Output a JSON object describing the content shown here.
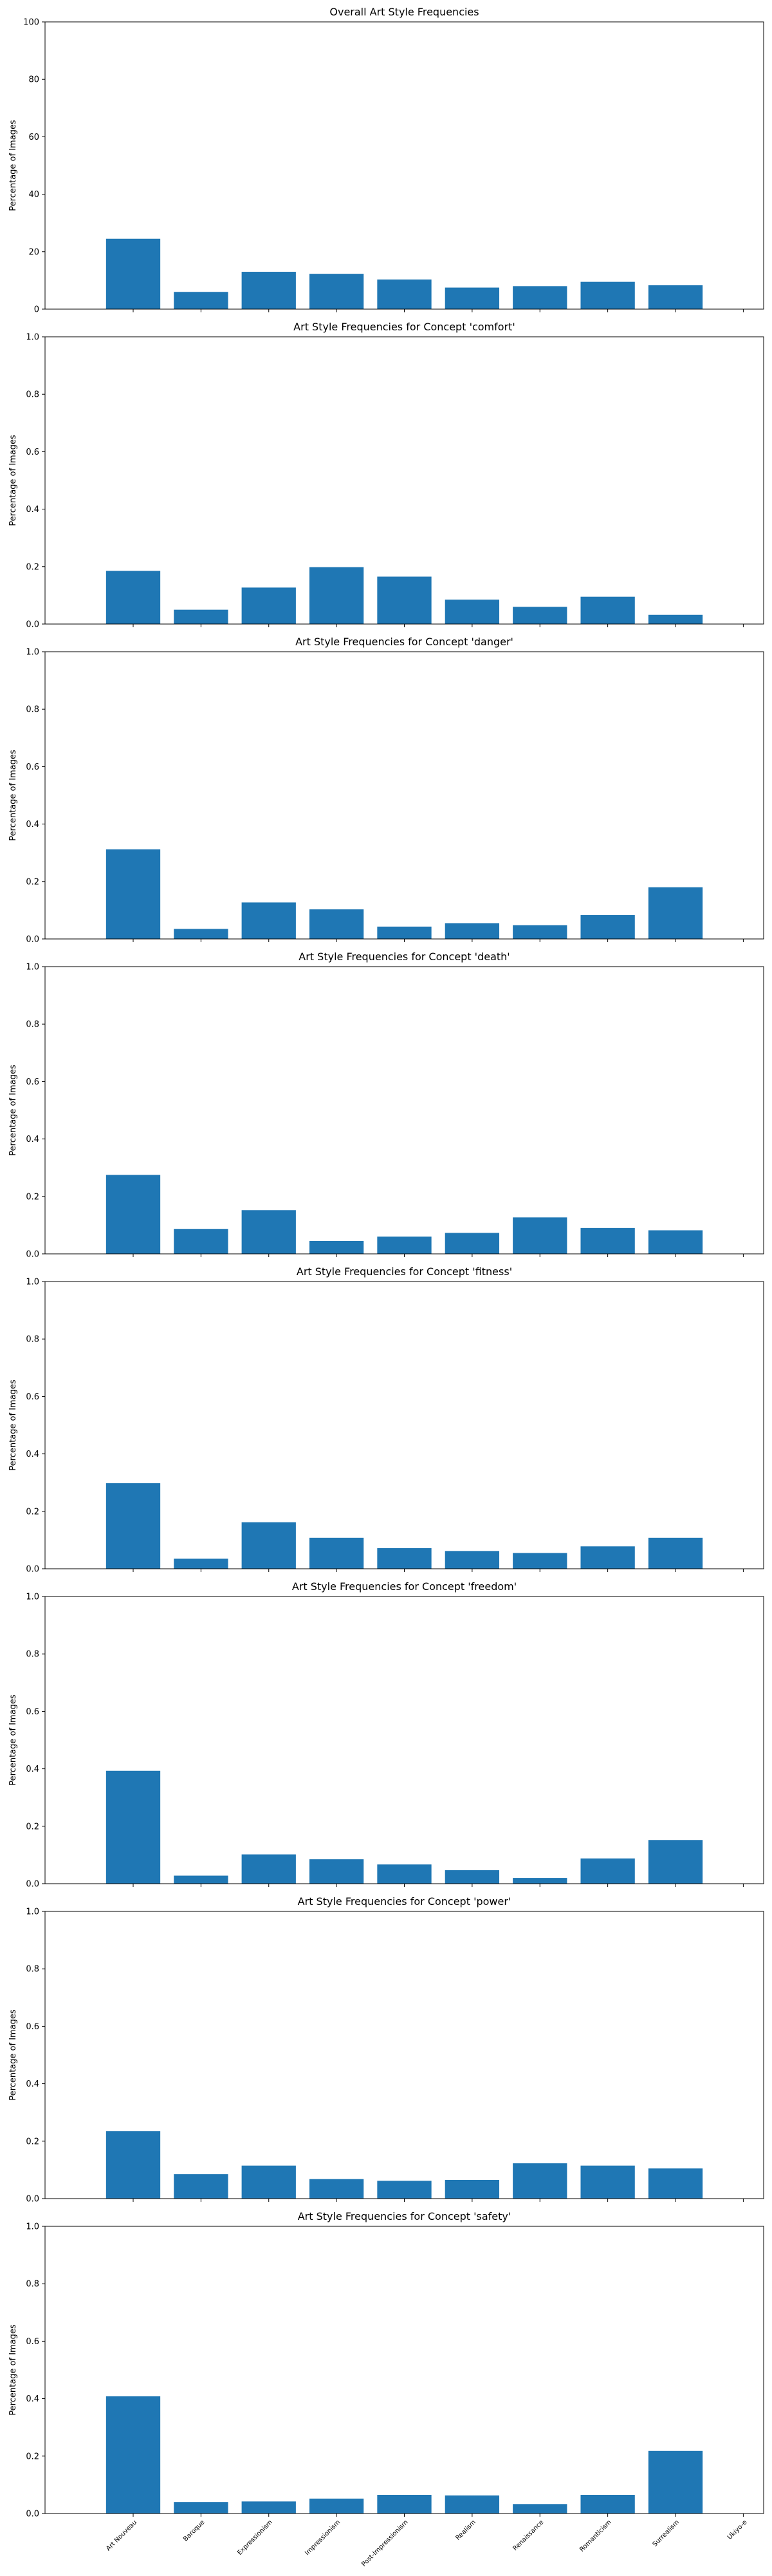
{
  "figure": {
    "categories": [
      "Art Nouveau",
      "Baroque",
      "Expressionism",
      "Impressionism",
      "Post-Impressionism",
      "Realism",
      "Renaissance",
      "Romanticism",
      "Surrealism",
      "Ukiyo-e"
    ],
    "ylabel": "Percentage of Images",
    "bar_color": "#1f77b4"
  },
  "chart_data": [
    {
      "type": "bar",
      "title": "Overall Art Style Frequencies",
      "ylabel": "Percentage of Images",
      "ylim": [
        0,
        100
      ],
      "yticks": [
        0,
        20,
        40,
        60,
        80,
        100
      ],
      "categories": [
        "Art Nouveau",
        "Baroque",
        "Expressionism",
        "Impressionism",
        "Post-Impressionism",
        "Realism",
        "Renaissance",
        "Romanticism",
        "Surrealism",
        "Ukiyo-e"
      ],
      "values": [
        24.5,
        6.0,
        13.0,
        12.3,
        10.3,
        7.5,
        8.0,
        9.5,
        8.3,
        0
      ]
    },
    {
      "type": "bar",
      "title": "Art Style Frequencies for Concept 'comfort'",
      "ylabel": "Percentage of Images",
      "ylim": [
        0,
        1.0
      ],
      "yticks": [
        0.0,
        0.2,
        0.4,
        0.6,
        0.8,
        1.0
      ],
      "categories": [
        "Art Nouveau",
        "Baroque",
        "Expressionism",
        "Impressionism",
        "Post-Impressionism",
        "Realism",
        "Renaissance",
        "Romanticism",
        "Surrealism",
        "Ukiyo-e"
      ],
      "values": [
        0.185,
        0.05,
        0.127,
        0.198,
        0.165,
        0.085,
        0.06,
        0.095,
        0.032,
        0
      ]
    },
    {
      "type": "bar",
      "title": "Art Style Frequencies for Concept 'danger'",
      "ylabel": "Percentage of Images",
      "ylim": [
        0,
        1.0
      ],
      "yticks": [
        0.0,
        0.2,
        0.4,
        0.6,
        0.8,
        1.0
      ],
      "categories": [
        "Art Nouveau",
        "Baroque",
        "Expressionism",
        "Impressionism",
        "Post-Impressionism",
        "Realism",
        "Renaissance",
        "Romanticism",
        "Surrealism",
        "Ukiyo-e"
      ],
      "values": [
        0.312,
        0.035,
        0.127,
        0.103,
        0.043,
        0.055,
        0.048,
        0.083,
        0.18,
        0
      ]
    },
    {
      "type": "bar",
      "title": "Art Style Frequencies for Concept 'death'",
      "ylabel": "Percentage of Images",
      "ylim": [
        0,
        1.0
      ],
      "yticks": [
        0.0,
        0.2,
        0.4,
        0.6,
        0.8,
        1.0
      ],
      "categories": [
        "Art Nouveau",
        "Baroque",
        "Expressionism",
        "Impressionism",
        "Post-Impressionism",
        "Realism",
        "Renaissance",
        "Romanticism",
        "Surrealism",
        "Ukiyo-e"
      ],
      "values": [
        0.275,
        0.087,
        0.152,
        0.045,
        0.06,
        0.073,
        0.127,
        0.09,
        0.082,
        0
      ]
    },
    {
      "type": "bar",
      "title": "Art Style Frequencies for Concept 'fitness'",
      "ylabel": "Percentage of Images",
      "ylim": [
        0,
        1.0
      ],
      "yticks": [
        0.0,
        0.2,
        0.4,
        0.6,
        0.8,
        1.0
      ],
      "categories": [
        "Art Nouveau",
        "Baroque",
        "Expressionism",
        "Impressionism",
        "Post-Impressionism",
        "Realism",
        "Renaissance",
        "Romanticism",
        "Surrealism",
        "Ukiyo-e"
      ],
      "values": [
        0.298,
        0.035,
        0.162,
        0.108,
        0.072,
        0.062,
        0.055,
        0.078,
        0.108,
        0
      ]
    },
    {
      "type": "bar",
      "title": "Art Style Frequencies for Concept 'freedom'",
      "ylabel": "Percentage of Images",
      "ylim": [
        0,
        1.0
      ],
      "yticks": [
        0.0,
        0.2,
        0.4,
        0.6,
        0.8,
        1.0
      ],
      "categories": [
        "Art Nouveau",
        "Baroque",
        "Expressionism",
        "Impressionism",
        "Post-Impressionism",
        "Realism",
        "Renaissance",
        "Romanticism",
        "Surrealism",
        "Ukiyo-e"
      ],
      "values": [
        0.393,
        0.028,
        0.102,
        0.085,
        0.067,
        0.047,
        0.02,
        0.088,
        0.152,
        0
      ]
    },
    {
      "type": "bar",
      "title": "Art Style Frequencies for Concept 'power'",
      "ylabel": "Percentage of Images",
      "ylim": [
        0,
        1.0
      ],
      "yticks": [
        0.0,
        0.2,
        0.4,
        0.6,
        0.8,
        1.0
      ],
      "categories": [
        "Art Nouveau",
        "Baroque",
        "Expressionism",
        "Impressionism",
        "Post-Impressionism",
        "Realism",
        "Renaissance",
        "Romanticism",
        "Surrealism",
        "Ukiyo-e"
      ],
      "values": [
        0.235,
        0.085,
        0.115,
        0.068,
        0.062,
        0.065,
        0.123,
        0.115,
        0.105,
        0
      ]
    },
    {
      "type": "bar",
      "title": "Art Style Frequencies for Concept 'safety'",
      "ylabel": "Percentage of Images",
      "ylim": [
        0,
        1.0
      ],
      "yticks": [
        0.0,
        0.2,
        0.4,
        0.6,
        0.8,
        1.0
      ],
      "categories": [
        "Art Nouveau",
        "Baroque",
        "Expressionism",
        "Impressionism",
        "Post-Impressionism",
        "Realism",
        "Renaissance",
        "Romanticism",
        "Surrealism",
        "Ukiyo-e"
      ],
      "values": [
        0.408,
        0.04,
        0.042,
        0.052,
        0.065,
        0.063,
        0.033,
        0.065,
        0.218,
        0
      ]
    }
  ]
}
